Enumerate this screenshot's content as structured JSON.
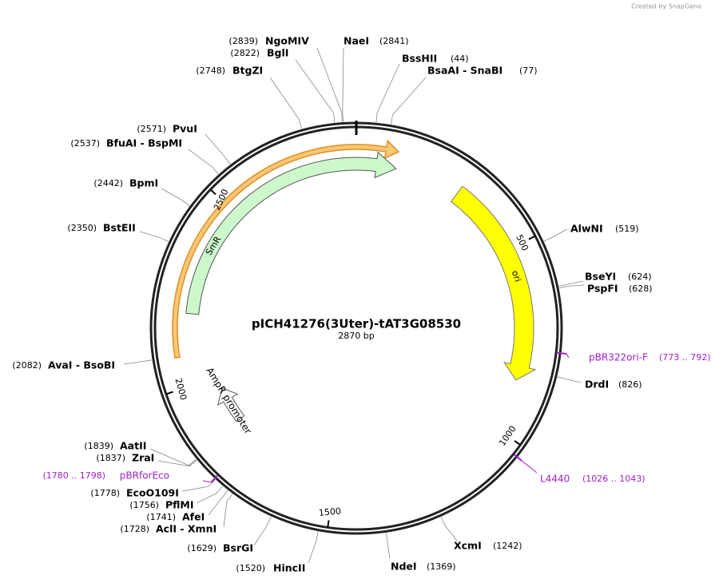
{
  "header": {
    "credit": "Created by SnapGene"
  },
  "map": {
    "name": "pICH41276(3Uter)-tAT3G08530",
    "length": "2870 bp",
    "ticks": [
      "500",
      "1000",
      "1500",
      "2000",
      "2500"
    ],
    "features": [
      {
        "label": "SmR"
      },
      {
        "label": "ori"
      },
      {
        "label": "AmpR promoter"
      }
    ],
    "sites": [
      {
        "name": "NgoMIV",
        "location": "(2839)"
      },
      {
        "name": "BglI",
        "location": "(2822)"
      },
      {
        "name": "BtgZI",
        "location": "(2748)"
      },
      {
        "name": "NaeI",
        "location": "(2841)"
      },
      {
        "name": "BssHII",
        "location": "(44)"
      },
      {
        "name": "BsaAI  - SnaBI",
        "location": "(77)"
      },
      {
        "name": "PvuI",
        "location": "(2571)"
      },
      {
        "name": "BfuAI  - BspMI",
        "location": "(2537)"
      },
      {
        "name": "BpmI",
        "location": "(2442)"
      },
      {
        "name": "BstEII",
        "location": "(2350)"
      },
      {
        "name": "AvaI  - BsoBI",
        "location": "(2082)"
      },
      {
        "name": "AatII",
        "location": "(1839)"
      },
      {
        "name": "ZraI",
        "location": "(1837)"
      },
      {
        "name": "EcoO109I",
        "location": "(1778)"
      },
      {
        "name": "PflMI",
        "location": "(1756)"
      },
      {
        "name": "AfeI",
        "location": "(1741)"
      },
      {
        "name": "AclI  - XmnI",
        "location": "(1728)"
      },
      {
        "name": "BsrGI",
        "location": "(1629)"
      },
      {
        "name": "HincII",
        "location": "(1520)"
      },
      {
        "name": "NdeI",
        "location": "(1369)"
      },
      {
        "name": "XcmI",
        "location": "(1242)"
      },
      {
        "name": "DrdI",
        "location": "(826)"
      },
      {
        "name": "PspFI",
        "location": "(628)"
      },
      {
        "name": "BseYI",
        "location": "(624)"
      },
      {
        "name": "AlwNI",
        "location": "(519)"
      }
    ],
    "primers": [
      {
        "name": "pBR322ori-F",
        "location": "(773 .. 792)"
      },
      {
        "name": "L4440",
        "location": "(1026 .. 1043)"
      },
      {
        "name": "pBRforEco",
        "location": "(1780 .. 1798)"
      }
    ]
  }
}
